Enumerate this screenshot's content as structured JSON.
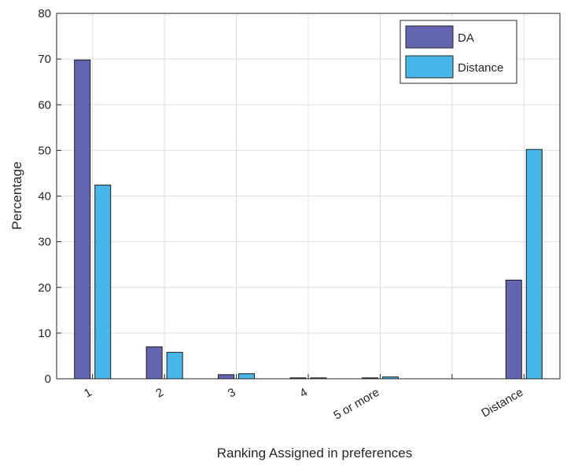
{
  "chart_data": {
    "type": "bar",
    "categories": [
      "1",
      "2",
      "3",
      "4",
      "5 or more",
      "",
      "Distance"
    ],
    "series": [
      {
        "name": "DA",
        "color": "#6465b0",
        "values": [
          69.8,
          7.0,
          0.9,
          0.2,
          0.2,
          0,
          21.6
        ]
      },
      {
        "name": "Distance",
        "color": "#46b7e8",
        "values": [
          42.4,
          5.8,
          1.1,
          0.2,
          0.4,
          0,
          50.2
        ]
      }
    ],
    "xlabel": "Ranking Assigned in preferences",
    "ylabel": "Percentage",
    "ylim": [
      0,
      80
    ],
    "yticks": [
      0,
      10,
      20,
      30,
      40,
      50,
      60,
      70,
      80
    ],
    "grid": true,
    "legend_position": "top-right"
  }
}
